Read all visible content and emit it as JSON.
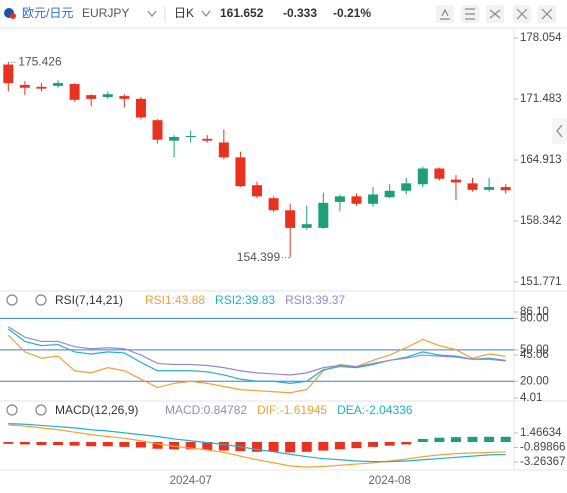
{
  "header": {
    "pair": "欧元/日元",
    "symbol": "EURJPY",
    "period": "日K",
    "change": "-0.333",
    "change_pct": "-0.21%"
  },
  "chart_data": [
    {
      "type": "candlestick",
      "up_color": "#1f9e7a",
      "down_color": "#e8321f",
      "open": [
        175.2,
        173.0,
        172.8,
        172.9,
        173.1,
        171.9,
        171.7,
        171.8,
        171.5,
        169.2,
        167.0,
        167.4,
        167.2,
        166.8,
        165.2,
        162.2,
        160.8,
        159.5,
        157.6,
        157.6,
        160.4,
        161.0,
        160.2,
        160.9,
        161.6,
        162.3,
        164.0,
        162.8,
        162.4,
        161.7,
        162.0
      ],
      "high": [
        175.426,
        173.4,
        173.2,
        173.5,
        173.2,
        172.0,
        172.3,
        172.0,
        171.7,
        169.3,
        167.6,
        168.1,
        167.6,
        168.2,
        165.8,
        162.6,
        161.0,
        160.2,
        160.0,
        161.4,
        161.2,
        161.3,
        162.0,
        162.3,
        163.0,
        164.2,
        164.1,
        163.3,
        163.0,
        163.0,
        162.3
      ],
      "low": [
        172.3,
        171.9,
        172.3,
        172.7,
        171.2,
        170.7,
        171.5,
        170.6,
        169.3,
        166.7,
        165.2,
        166.8,
        166.8,
        165.0,
        162.0,
        160.8,
        159.3,
        154.399,
        157.4,
        157.5,
        159.4,
        160.0,
        159.9,
        160.8,
        161.2,
        162.0,
        162.7,
        160.6,
        161.5,
        161.5,
        161.3
      ],
      "close": [
        173.2,
        172.7,
        172.6,
        173.2,
        171.4,
        171.5,
        172.0,
        171.5,
        169.5,
        167.1,
        167.4,
        167.5,
        167.0,
        165.2,
        162.1,
        161.0,
        159.5,
        157.6,
        158.0,
        160.3,
        161.0,
        160.2,
        161.2,
        161.6,
        162.4,
        164.0,
        162.9,
        162.5,
        161.7,
        162.0,
        161.652
      ],
      "ylim": [
        150.91,
        178.92
      ],
      "yticks": [
        178.054,
        171.483,
        164.913,
        158.342,
        151.771
      ]
    },
    {
      "type": "line",
      "title": "RSI(7,14,21)",
      "series": [
        {
          "name": "RSI1:43.88",
          "color": "#f5a035",
          "values": [
            64,
            48,
            42,
            44,
            30,
            28,
            33,
            30,
            22,
            14,
            18,
            20,
            18,
            15,
            12,
            11,
            10,
            9,
            12,
            30,
            36,
            34,
            40,
            45,
            52,
            60,
            54,
            50,
            42,
            46,
            43.88
          ]
        },
        {
          "name": "RSI2:39.83",
          "color": "#22b1c8",
          "values": [
            70,
            58,
            54,
            55,
            48,
            46,
            48,
            47,
            38,
            30,
            30,
            30,
            29,
            26,
            22,
            20,
            20,
            18,
            20,
            31,
            34,
            33,
            36,
            40,
            43,
            48,
            45,
            44,
            41,
            42,
            39.83
          ]
        },
        {
          "name": "RSI3:39.37",
          "color": "#9b86d6",
          "values": [
            72,
            62,
            58,
            58,
            53,
            51,
            52,
            51,
            45,
            37,
            36,
            36,
            35,
            33,
            30,
            28,
            27,
            26,
            28,
            33,
            35,
            34,
            37,
            40,
            42,
            45,
            44,
            43,
            41,
            41,
            39.37
          ]
        }
      ],
      "levels": [
        80,
        50,
        20
      ],
      "level_color": "#3a7bd5",
      "ylim": [
        4.01,
        86.1
      ],
      "yticks": [
        {
          "value": 86.1,
          "label": "86.10"
        },
        {
          "value": 80,
          "label": "80.00"
        },
        {
          "value": 50,
          "label": "50.00"
        },
        {
          "value": 45.06,
          "label": "45.06"
        },
        {
          "value": 20,
          "label": "20.00"
        },
        {
          "value": 4.01,
          "label": "4.01"
        }
      ]
    },
    {
      "type": "combo",
      "title": "MACD(12,26,9)",
      "categories": [
        null,
        null,
        null,
        null,
        null,
        null,
        null,
        null,
        null,
        null,
        null,
        "2024-07",
        null,
        null,
        null,
        null,
        null,
        null,
        null,
        null,
        null,
        null,
        null,
        "2024-08",
        null,
        null,
        null,
        null,
        null,
        null,
        null
      ],
      "series": [
        {
          "name": "MACD:0.84782",
          "type": "bar",
          "color": "#8f8fb8",
          "up_color": "#1f9e7a",
          "down_color": "#e8321f",
          "values": [
            -0.3,
            -0.4,
            -0.5,
            -0.5,
            -0.6,
            -0.7,
            -0.7,
            -0.8,
            -0.9,
            -1.1,
            -1.2,
            -1.2,
            -1.3,
            -1.4,
            -1.5,
            -1.6,
            -1.6,
            -1.7,
            -1.6,
            -1.4,
            -1.2,
            -1.0,
            -0.8,
            -0.6,
            -0.4,
            0.5,
            0.7,
            0.8,
            0.85,
            0.85,
            0.84782
          ]
        },
        {
          "name": "DIF:-1.61945",
          "type": "line",
          "color": "#f5a035",
          "values": [
            2.8,
            2.6,
            2.3,
            2.0,
            1.6,
            1.2,
            0.9,
            0.6,
            0.2,
            -0.3,
            -0.7,
            -1.0,
            -1.3,
            -1.7,
            -2.3,
            -2.9,
            -3.4,
            -3.9,
            -4.1,
            -4.0,
            -3.8,
            -3.6,
            -3.4,
            -3.1,
            -2.8,
            -2.4,
            -2.1,
            -1.9,
            -1.8,
            -1.7,
            -1.61945
          ]
        },
        {
          "name": "DEA:-2.04336",
          "type": "line",
          "color": "#22b1c8",
          "values": [
            3.0,
            2.9,
            2.7,
            2.5,
            2.3,
            2.0,
            1.8,
            1.5,
            1.2,
            0.9,
            0.5,
            0.2,
            -0.1,
            -0.4,
            -0.8,
            -1.2,
            -1.6,
            -2.0,
            -2.4,
            -2.7,
            -2.9,
            -3.1,
            -3.2,
            -3.2,
            -3.1,
            -2.9,
            -2.7,
            -2.5,
            -2.3,
            -2.1,
            -2.04336
          ]
        }
      ],
      "ylim": [
        -4.57,
        3.59
      ],
      "yticks": [
        1.46634,
        -0.89866,
        -3.26367
      ]
    }
  ]
}
